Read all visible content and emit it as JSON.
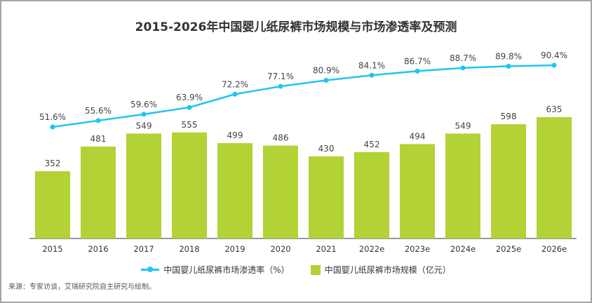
{
  "chart_data": {
    "type": "bar+line",
    "title": "2015-2026年中国婴儿纸尿裤市场规模与市场渗透率及预测",
    "categories": [
      "2015",
      "2016",
      "2017",
      "2018",
      "2019",
      "2020",
      "2021",
      "2022e",
      "2023e",
      "2024e",
      "2025e",
      "2026e"
    ],
    "series": [
      {
        "name": "中国婴儿纸尿裤市场规模（亿元）",
        "type": "bar",
        "color": "#b2d235",
        "values": [
          352,
          481,
          549,
          555,
          499,
          486,
          430,
          452,
          494,
          549,
          598,
          635
        ]
      },
      {
        "name": "中国婴儿纸尿裤市场渗透率（%）",
        "type": "line",
        "color": "#1fc5f0",
        "values": [
          51.6,
          55.6,
          59.6,
          63.9,
          72.2,
          77.1,
          80.9,
          84.1,
          86.7,
          88.7,
          89.8,
          90.4
        ]
      }
    ],
    "grid": false,
    "legend": "bottom"
  },
  "legend": {
    "line_label": "中国婴儿纸尿裤市场渗透率（%）",
    "bar_label": "中国婴儿纸尿裤市场规模（亿元）"
  },
  "source": "来源：专家访谈，艾瑞研究院自主研究与绘制。"
}
